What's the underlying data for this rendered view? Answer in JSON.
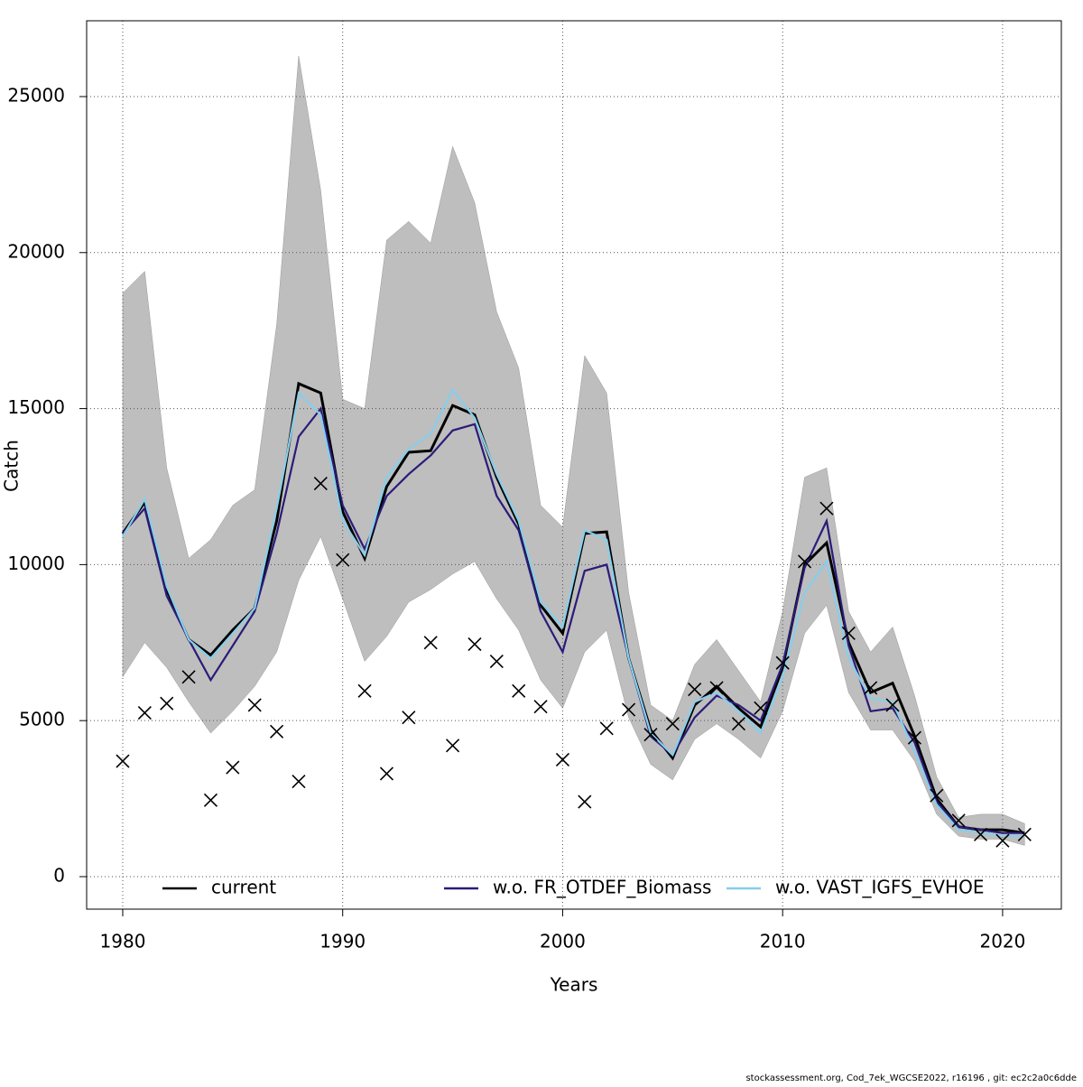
{
  "chart_data": {
    "type": "line",
    "xlabel": "Years",
    "ylabel": "Catch",
    "footer": "stockassessment.org, Cod_7ek_WGCSE2022, r16196 , git: ec2c2a0c6dde",
    "x": [
      1980,
      1981,
      1982,
      1983,
      1984,
      1985,
      1986,
      1987,
      1988,
      1989,
      1990,
      1991,
      1992,
      1993,
      1994,
      1995,
      1996,
      1997,
      1998,
      1999,
      2000,
      2001,
      2002,
      2003,
      2004,
      2005,
      2006,
      2007,
      2008,
      2009,
      2010,
      2011,
      2012,
      2013,
      2014,
      2015,
      2016,
      2017,
      2018,
      2019,
      2020,
      2021
    ],
    "series": [
      {
        "name": "current",
        "color": "#000000",
        "values": [
          11000,
          12000,
          9200,
          7600,
          7100,
          7900,
          8600,
          11400,
          15800,
          15500,
          11700,
          10200,
          12500,
          13600,
          13650,
          15100,
          14800,
          12800,
          11300,
          8700,
          7800,
          11000,
          11050,
          7000,
          4700,
          3800,
          5500,
          6100,
          5400,
          4800,
          6700,
          10000,
          10700,
          7500,
          5900,
          6200,
          4500,
          2500,
          1600,
          1500,
          1500,
          1400
        ]
      },
      {
        "name": "w.o. FR_OTDEF_Biomass",
        "color": "#2b1b7a",
        "values": [
          11000,
          11800,
          9000,
          7600,
          6300,
          7400,
          8500,
          11000,
          14100,
          15000,
          11900,
          10500,
          12200,
          12900,
          13500,
          14300,
          14500,
          12200,
          11100,
          8500,
          7200,
          9800,
          10000,
          7000,
          4500,
          3900,
          5100,
          5800,
          5500,
          5000,
          6800,
          9900,
          11400,
          7400,
          5300,
          5400,
          4300,
          2400,
          1600,
          1500,
          1400,
          1400
        ]
      },
      {
        "name": "w.o. VAST_IGFS_EVHOE",
        "color": "#87ceeb",
        "values": [
          10900,
          12100,
          9300,
          7600,
          7000,
          7800,
          8600,
          11800,
          15500,
          14800,
          11400,
          10300,
          12800,
          13700,
          14200,
          15600,
          14700,
          12900,
          11400,
          8800,
          8000,
          11100,
          10800,
          7000,
          4600,
          3900,
          5600,
          5900,
          5300,
          4600,
          6400,
          9100,
          10100,
          7000,
          5700,
          5600,
          4000,
          2300,
          1500,
          1400,
          1300,
          1300
        ]
      }
    ],
    "band": {
      "color": "#bebebe",
      "upper": [
        18700,
        19400,
        13100,
        10200,
        10800,
        11900,
        12400,
        17700,
        26300,
        22000,
        15300,
        15000,
        20400,
        21000,
        20300,
        23400,
        21600,
        18100,
        16300,
        11900,
        11200,
        16700,
        15500,
        9100,
        5500,
        5000,
        6800,
        7600,
        6600,
        5600,
        8500,
        12800,
        13100,
        8500,
        7200,
        8000,
        5800,
        3200,
        1900,
        2000,
        2000,
        1700
      ],
      "lower": [
        6400,
        7500,
        6700,
        5600,
        4600,
        5300,
        6100,
        7200,
        9500,
        10900,
        8900,
        6900,
        7700,
        8800,
        9200,
        9700,
        10100,
        8900,
        7900,
        6300,
        5400,
        7200,
        7900,
        5100,
        3600,
        3100,
        4400,
        4900,
        4400,
        3800,
        5300,
        7800,
        8700,
        5900,
        4700,
        4700,
        3700,
        2000,
        1300,
        1200,
        1200,
        1000
      ]
    },
    "observed": {
      "color": "#000000",
      "values": [
        3700,
        5250,
        5550,
        6400,
        2450,
        3500,
        5500,
        4650,
        3050,
        12600,
        10150,
        5950,
        3300,
        5100,
        7500,
        4200,
        7450,
        6900,
        5950,
        5450,
        3750,
        2400,
        4750,
        5350,
        4550,
        4900,
        6000,
        6050,
        4900,
        5400,
        6850,
        10100,
        11800,
        7800,
        6050,
        5500,
        4450,
        2600,
        1800,
        1350,
        1150,
        1350
      ]
    },
    "xlim": [
      1978.36,
      2022.67
    ],
    "ylim": [
      -1042,
      27430
    ],
    "xticks": [
      1980,
      1990,
      2000,
      2010,
      2020
    ],
    "yticks": [
      0,
      5000,
      10000,
      15000,
      20000,
      25000
    ],
    "grid": true,
    "legend": "bottom"
  }
}
